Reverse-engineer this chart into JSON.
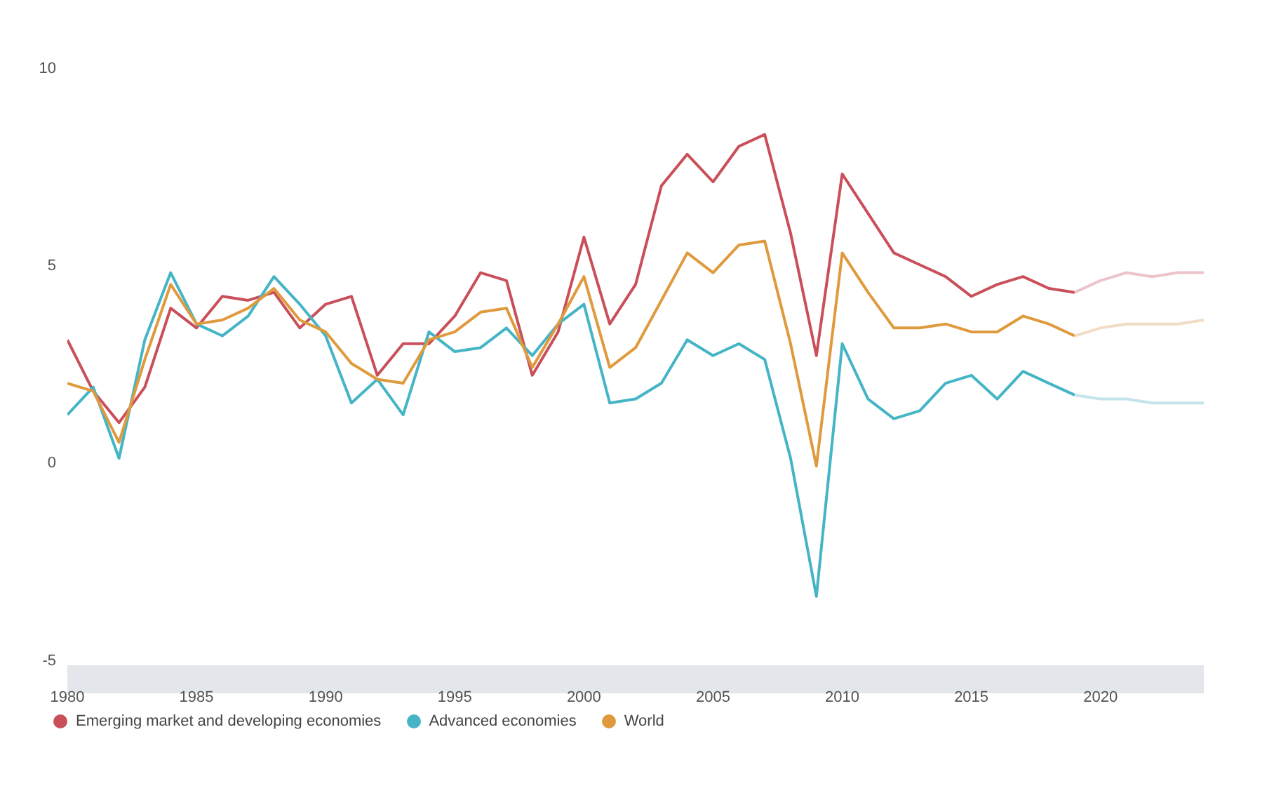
{
  "chart_data": {
    "type": "line",
    "xlim": [
      1980,
      2024
    ],
    "xticks": [
      1980,
      1985,
      1990,
      1995,
      2000,
      2005,
      2010,
      2015,
      2020
    ],
    "ylim": [
      -5.5,
      10
    ],
    "yticks": [
      -5,
      0,
      5,
      10
    ],
    "grid": false,
    "legend": "bottom",
    "marker": "none",
    "line_style": "solid",
    "x": [
      1980,
      1981,
      1982,
      1983,
      1984,
      1985,
      1986,
      1987,
      1988,
      1989,
      1990,
      1991,
      1992,
      1993,
      1994,
      1995,
      1996,
      1997,
      1998,
      1999,
      2000,
      2001,
      2002,
      2003,
      2004,
      2005,
      2006,
      2007,
      2008,
      2009,
      2010,
      2011,
      2012,
      2013,
      2014,
      2015,
      2016,
      2017,
      2018,
      2019
    ],
    "series": [
      {
        "name": "Emerging market and developing economies",
        "color": "#c9505a",
        "values": [
          3.1,
          1.8,
          1.0,
          1.9,
          3.9,
          3.4,
          4.2,
          4.1,
          4.3,
          3.4,
          4.0,
          4.2,
          2.2,
          3.0,
          3.0,
          3.7,
          4.8,
          4.6,
          2.2,
          3.3,
          5.7,
          3.5,
          4.5,
          7.0,
          7.8,
          7.1,
          8.0,
          8.3,
          5.8,
          2.7,
          7.3,
          6.3,
          5.3,
          5.0,
          4.7,
          4.2,
          4.5,
          4.7,
          4.4,
          4.3
        ]
      },
      {
        "name": "Advanced economies",
        "color": "#45b5c6",
        "values": [
          1.2,
          1.9,
          0.1,
          3.1,
          4.8,
          3.5,
          3.2,
          3.7,
          4.7,
          4.0,
          3.2,
          1.5,
          2.1,
          1.2,
          3.3,
          2.8,
          2.9,
          3.4,
          2.7,
          3.5,
          4.0,
          1.5,
          1.6,
          2.0,
          3.1,
          2.7,
          3.0,
          2.6,
          0.1,
          -3.4,
          3.0,
          1.6,
          1.1,
          1.3,
          2.0,
          2.2,
          1.6,
          2.3,
          2.0,
          1.7
        ]
      },
      {
        "name": "World",
        "color": "#e09a3e",
        "values": [
          2.0,
          1.8,
          0.5,
          2.6,
          4.5,
          3.5,
          3.6,
          3.9,
          4.4,
          3.6,
          3.3,
          2.5,
          2.1,
          2.0,
          3.1,
          3.3,
          3.8,
          3.9,
          2.4,
          3.5,
          4.7,
          2.4,
          2.9,
          4.1,
          5.3,
          4.8,
          5.5,
          5.6,
          3.0,
          -0.1,
          5.3,
          4.3,
          3.4,
          3.4,
          3.5,
          3.3,
          3.3,
          3.7,
          3.5,
          3.2
        ]
      },
      {
        "color": "#ecc4ca",
        "x": [
          2019,
          2020,
          2021,
          2022,
          2023,
          2024
        ],
        "values": [
          4.3,
          4.6,
          4.8,
          4.7,
          4.8,
          4.8
        ]
      },
      {
        "color": "#c4e4ec",
        "x": [
          2019,
          2020,
          2021,
          2022,
          2023,
          2024
        ],
        "values": [
          1.7,
          1.6,
          1.6,
          1.5,
          1.5,
          1.5
        ]
      },
      {
        "color": "#f2dcc4",
        "x": [
          2019,
          2020,
          2021,
          2022,
          2023,
          2024
        ],
        "values": [
          3.2,
          3.4,
          3.5,
          3.5,
          3.5,
          3.6
        ]
      }
    ]
  }
}
